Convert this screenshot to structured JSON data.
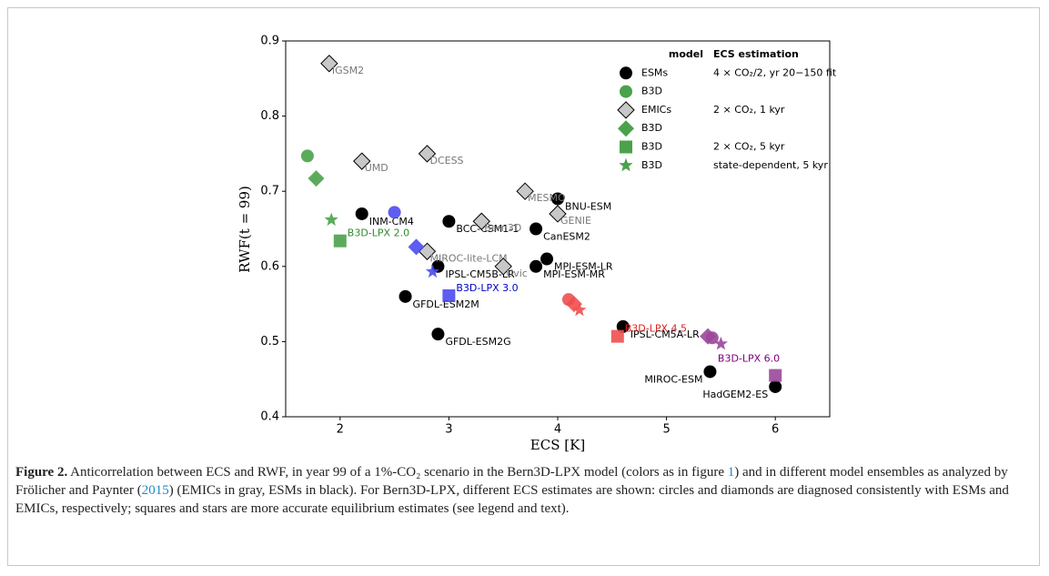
{
  "chart_data": {
    "type": "scatter",
    "xlabel": "ECS [K]",
    "ylabel": "RWF(t = 99)",
    "xlim": [
      1.5,
      6.5
    ],
    "ylim": [
      0.4,
      0.9
    ],
    "xticks": [
      2,
      3,
      4,
      5,
      6
    ],
    "yticks": [
      0.4,
      0.5,
      0.6,
      0.7,
      0.8,
      0.9
    ],
    "legend_header": [
      "model",
      "ECS estimation"
    ],
    "series": [
      {
        "name": "ESMs",
        "marker": "circle",
        "color": "#000000",
        "estimation": "4 × CO₂/2, yr 20−150 fit",
        "x": [
          2.2,
          3.0,
          4.0,
          3.8,
          3.9,
          3.8,
          2.9,
          2.6,
          2.9,
          4.6,
          5.4,
          6.0
        ],
        "y": [
          0.67,
          0.66,
          0.69,
          0.65,
          0.61,
          0.6,
          0.6,
          0.56,
          0.51,
          0.52,
          0.46,
          0.44
        ],
        "point_labels": [
          "INM-CM4",
          "BCC-CSM1-1",
          "BNU-ESM",
          "CanESM2",
          "MPI-ESM-LR",
          "MPI-ESM-MR",
          "IPSL-CM5B-LR",
          "GFDL-ESM2M",
          "GFDL-ESM2G",
          "IPSL-CM5A-LR",
          "MIROC-ESM",
          "HadGEM2-ES"
        ],
        "label_color": "#000000"
      },
      {
        "name": "B3D",
        "marker": "circle",
        "color": "#4aa24a",
        "x": [
          1.7,
          2.5,
          4.1,
          5.42
        ],
        "y": [
          0.747,
          0.672,
          0.556,
          0.505
        ],
        "point_colors": [
          "#4aa24a",
          "#4b4bf0",
          "#ef4f4f",
          "#9b479b"
        ]
      },
      {
        "name": "EMICs",
        "marker": "diamond",
        "color": "#c8c8c8",
        "estimation": "2 × CO₂, 1 kyr",
        "x": [
          1.9,
          2.2,
          2.8,
          3.7,
          3.3,
          4.0,
          2.8,
          3.5
        ],
        "y": [
          0.87,
          0.74,
          0.75,
          0.7,
          0.66,
          0.67,
          0.62,
          0.6
        ],
        "point_labels": [
          "IGSM2",
          "UMD",
          "DCESS",
          "MESMO",
          "Bern3D",
          "GENIE",
          "MIROC-lite-LCM",
          "Uvic"
        ],
        "label_color": "#777777"
      },
      {
        "name": "B3D",
        "marker": "diamond",
        "color": "#4aa24a",
        "x": [
          1.78,
          2.7,
          4.15,
          5.38
        ],
        "y": [
          0.717,
          0.626,
          0.55,
          0.507
        ],
        "point_colors": [
          "#4aa24a",
          "#4b4bf0",
          "#ef4f4f",
          "#9b479b"
        ]
      },
      {
        "name": "B3D",
        "marker": "square",
        "color": "#4aa24a",
        "estimation": "2 × CO₂, 5 kyr",
        "x": [
          2.0,
          3.0,
          4.55,
          6.0
        ],
        "y": [
          0.634,
          0.561,
          0.507,
          0.455
        ],
        "point_colors": [
          "#4aa24a",
          "#4b4bf0",
          "#ef4f4f",
          "#9b479b"
        ],
        "point_labels": [
          "B3D-LPX 2.0",
          "B3D-LPX 3.0",
          "B3D-LPX 4.5",
          "B3D-LPX 6.0"
        ],
        "label_colors": [
          "#2e8b2e",
          "#0000cc",
          "#e02020",
          "#800080"
        ]
      },
      {
        "name": "B3D",
        "marker": "star",
        "color": "#4aa24a",
        "estimation": "state-dependent, 5 kyr",
        "x": [
          1.92,
          2.85,
          4.2,
          5.5
        ],
        "y": [
          0.662,
          0.593,
          0.542,
          0.497
        ],
        "point_colors": [
          "#4aa24a",
          "#4b4bf0",
          "#ef4f4f",
          "#9b479b"
        ]
      }
    ]
  },
  "caption": {
    "label": "Figure 2.",
    "parts": [
      " Anticorrelation between ECS and RWF, in year 99 of a 1%-CO₂ scenario in the Bern3D-LPX model (colors as in figure ",
      "1",
      ") and in different model ensembles as analyzed by Frölicher and Paynter (",
      "2015",
      ") (EMICs in gray, ESMs in black). For Bern3D-LPX, different ECS estimates are shown: circles and diamonds are diagnosed consistently with ESMs and EMICs, respectively; squares and stars are more accurate equilibrium estimates (see legend and text)."
    ]
  }
}
